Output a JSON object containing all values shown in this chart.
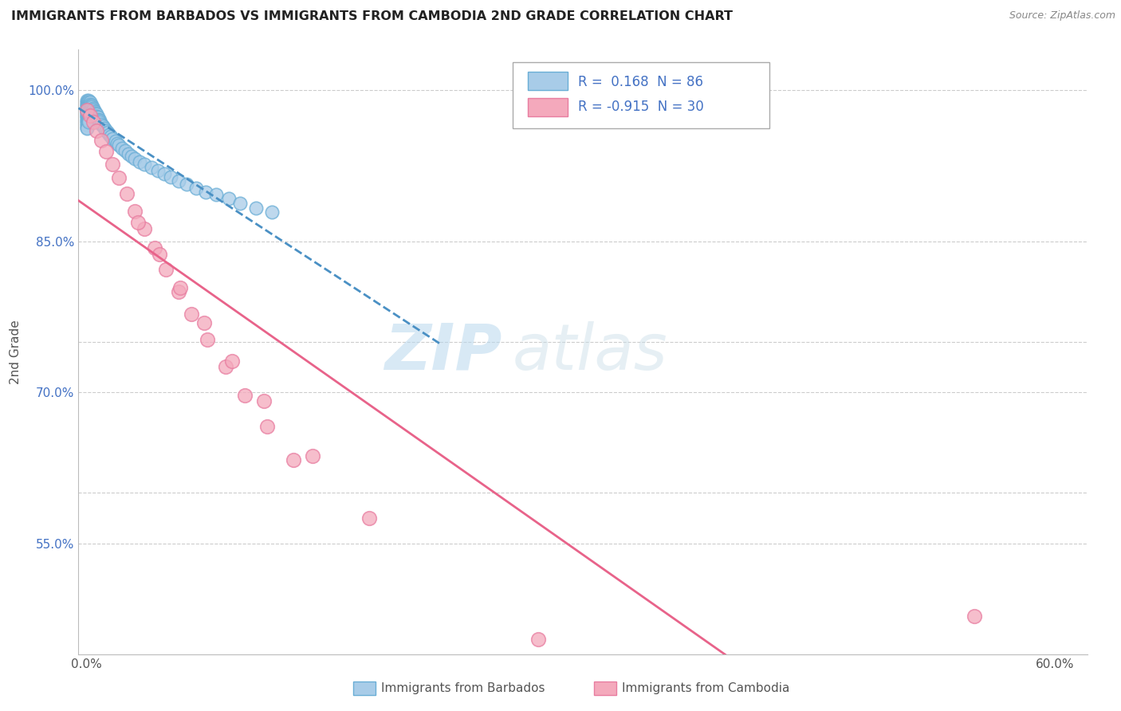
{
  "title": "IMMIGRANTS FROM BARBADOS VS IMMIGRANTS FROM CAMBODIA 2ND GRADE CORRELATION CHART",
  "source": "Source: ZipAtlas.com",
  "ylabel": "2nd Grade",
  "blue_R": 0.168,
  "blue_N": 86,
  "pink_R": -0.915,
  "pink_N": 30,
  "legend_label_blue": "Immigrants from Barbados",
  "legend_label_pink": "Immigrants from Cambodia",
  "blue_color": "#a8cce8",
  "pink_color": "#f4a9bc",
  "blue_edge_color": "#6aaed6",
  "pink_edge_color": "#e87da0",
  "blue_line_color": "#4a90c4",
  "pink_line_color": "#e8638a",
  "watermark_zip": "ZIP",
  "watermark_atlas": "atlas",
  "xlim_min": -0.005,
  "xlim_max": 0.62,
  "ylim_min": 0.44,
  "ylim_max": 1.04,
  "ytick_positions": [
    0.55,
    0.6,
    0.7,
    0.75,
    0.85,
    1.0
  ],
  "ytick_labels": [
    "55.0%",
    "",
    "70.0%",
    "",
    "85.0%",
    "100.0%"
  ],
  "xtick_positions": [
    0.0,
    0.1,
    0.2,
    0.3,
    0.4,
    0.5,
    0.6
  ],
  "xtick_labels": [
    "0.0%",
    "",
    "",
    "",
    "",
    "",
    "60.0%"
  ],
  "blue_x": [
    0.0,
    0.0,
    0.0,
    0.0,
    0.0,
    0.0,
    0.0,
    0.0,
    0.0,
    0.0,
    0.0,
    0.0,
    0.0,
    0.0,
    0.0,
    0.0,
    0.0,
    0.0,
    0.001,
    0.001,
    0.001,
    0.001,
    0.001,
    0.001,
    0.001,
    0.001,
    0.001,
    0.001,
    0.001,
    0.001,
    0.002,
    0.002,
    0.002,
    0.002,
    0.002,
    0.002,
    0.002,
    0.003,
    0.003,
    0.003,
    0.003,
    0.003,
    0.004,
    0.004,
    0.004,
    0.004,
    0.005,
    0.005,
    0.005,
    0.006,
    0.006,
    0.007,
    0.007,
    0.008,
    0.008,
    0.009,
    0.01,
    0.011,
    0.012,
    0.013,
    0.014,
    0.015,
    0.016,
    0.018,
    0.019,
    0.02,
    0.022,
    0.024,
    0.026,
    0.028,
    0.03,
    0.033,
    0.036,
    0.04,
    0.044,
    0.048,
    0.052,
    0.057,
    0.062,
    0.068,
    0.074,
    0.08,
    0.088,
    0.095,
    0.105,
    0.115
  ],
  "blue_y": [
    0.99,
    0.988,
    0.986,
    0.985,
    0.983,
    0.981,
    0.979,
    0.978,
    0.976,
    0.975,
    0.974,
    0.972,
    0.97,
    0.969,
    0.967,
    0.965,
    0.963,
    0.962,
    0.99,
    0.988,
    0.986,
    0.984,
    0.982,
    0.98,
    0.978,
    0.976,
    0.974,
    0.972,
    0.97,
    0.968,
    0.988,
    0.986,
    0.984,
    0.982,
    0.98,
    0.978,
    0.976,
    0.985,
    0.983,
    0.981,
    0.979,
    0.977,
    0.982,
    0.98,
    0.978,
    0.976,
    0.979,
    0.977,
    0.975,
    0.976,
    0.974,
    0.973,
    0.971,
    0.97,
    0.968,
    0.966,
    0.964,
    0.962,
    0.96,
    0.958,
    0.956,
    0.954,
    0.952,
    0.949,
    0.947,
    0.945,
    0.942,
    0.94,
    0.937,
    0.934,
    0.932,
    0.929,
    0.926,
    0.923,
    0.92,
    0.917,
    0.914,
    0.91,
    0.907,
    0.903,
    0.899,
    0.896,
    0.892,
    0.888,
    0.883,
    0.879
  ],
  "pink_x": [
    0.0,
    0.002,
    0.004,
    0.006,
    0.009,
    0.012,
    0.016,
    0.02,
    0.025,
    0.03,
    0.036,
    0.042,
    0.049,
    0.057,
    0.065,
    0.075,
    0.086,
    0.098,
    0.112,
    0.128,
    0.032,
    0.045,
    0.058,
    0.073,
    0.09,
    0.11,
    0.14,
    0.175,
    0.28,
    0.55
  ],
  "pink_y": [
    0.98,
    0.975,
    0.968,
    0.96,
    0.95,
    0.939,
    0.926,
    0.913,
    0.897,
    0.88,
    0.862,
    0.843,
    0.822,
    0.8,
    0.778,
    0.752,
    0.725,
    0.697,
    0.666,
    0.633,
    0.869,
    0.837,
    0.804,
    0.769,
    0.731,
    0.691,
    0.637,
    0.575,
    0.455,
    0.478
  ]
}
